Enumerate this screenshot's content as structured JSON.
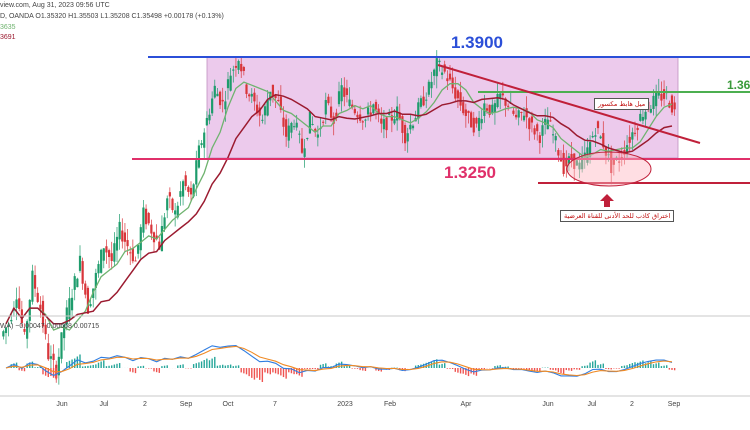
{
  "header": {
    "line1": "view.com, Aug 31, 2023 09:56 UTC",
    "line2": "D, OANDA  O1.35320  H1.35503  L1.35208  C1.35498  +0.00178 (+0.13%)",
    "line3": "3635",
    "line4": "3691"
  },
  "labels": {
    "resistance": "1.3900",
    "support": "1.3250",
    "green_level": "1.36",
    "trendline_note": "ميل هابط مكسور",
    "breakout_note": "اختراق كاذب للحد الأدنى للقناة العرضية"
  },
  "macd": {
    "header": "WA)  −0.00047  0.00668  0.00715"
  },
  "x_ticks": [
    "Jun",
    "Jul",
    "2",
    "Sep",
    "Oct",
    "7",
    "2023",
    "Feb",
    "Apr",
    "Jun",
    "Jul",
    "2",
    "Sep"
  ],
  "colors": {
    "range_box": "#e6b8e6",
    "resistance_line": "#2b4fd8",
    "support_line": "#e0306a",
    "trendline": "#c0203a",
    "green_line": "#4caf50",
    "ma_fast": "#6fb36f",
    "ma_slow": "#9b1b30",
    "macd_line": "#2f7de1",
    "signal_line": "#f08a24",
    "hist_pos": "#26a69a",
    "hist_neg": "#ef5350"
  },
  "chart_data": {
    "type": "candlestick",
    "title": "",
    "xlabel": "",
    "ylabel": "",
    "levels": [
      1.39,
      1.325
    ],
    "x_ticks": [
      "Jun",
      "Jul",
      "2",
      "Sep",
      "Oct",
      "7",
      "2023",
      "Feb",
      "Apr",
      "Jun",
      "Jul",
      "2",
      "Sep"
    ],
    "series": [
      {
        "name": "",
        "values": [
          1.22,
          1.24,
          1.21,
          1.25,
          1.23,
          1.2,
          1.19,
          1.22,
          1.24,
          1.26,
          1.23,
          1.25,
          1.27,
          1.26,
          1.28,
          1.27,
          1.26,
          1.29,
          1.28,
          1.27,
          1.3,
          1.29,
          1.31,
          1.3,
          1.33,
          1.35,
          1.37,
          1.36,
          1.38,
          1.39,
          1.37,
          1.36,
          1.35,
          1.37,
          1.36,
          1.34,
          1.35,
          1.33,
          1.35,
          1.34,
          1.36,
          1.35,
          1.37,
          1.36,
          1.355,
          1.35,
          1.36,
          1.345,
          1.35,
          1.355,
          1.34,
          1.35,
          1.36,
          1.37,
          1.385,
          1.38,
          1.37,
          1.36,
          1.35,
          1.345,
          1.36,
          1.355,
          1.365,
          1.36,
          1.35,
          1.355,
          1.345,
          1.34,
          1.35,
          1.335,
          1.32,
          1.325,
          1.32,
          1.33,
          1.345,
          1.335,
          1.32,
          1.325,
          1.335,
          1.345,
          1.355,
          1.36,
          1.365,
          1.365,
          1.355
        ]
      }
    ]
  }
}
